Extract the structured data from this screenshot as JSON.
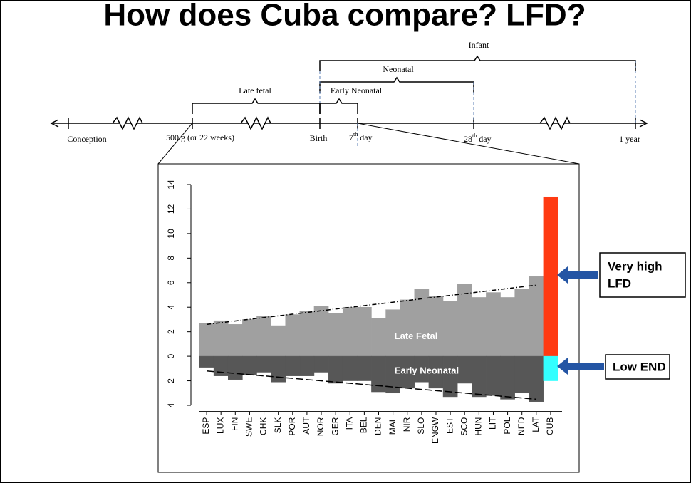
{
  "title": "How does Cuba compare? LFD?",
  "timeline": {
    "points": [
      "Conception",
      "500 g (or 22 weeks)",
      "Birth"
    ],
    "day7": {
      "num": "7",
      "sup": "th",
      "rest": " day"
    },
    "day28": {
      "num": "28",
      "sup": "th",
      "rest": " day"
    },
    "year": "1 year",
    "periods": {
      "late_fetal": "Late fetal",
      "early_neonatal": "Early Neonatal",
      "neonatal": "Neonatal",
      "infant": "Infant"
    }
  },
  "callouts": {
    "high": [
      "Very high",
      "LFD"
    ],
    "low": "Low END"
  },
  "chart_data": {
    "type": "bar",
    "categories": [
      "ESP",
      "LUX",
      "FIN",
      "SWE",
      "CHK",
      "SLK",
      "POR",
      "AUT",
      "NOR",
      "GER",
      "ITA",
      "BEL",
      "DEN",
      "MAL",
      "NIR",
      "SLO",
      "ENGW",
      "EST",
      "SCO",
      "HUN",
      "LIT",
      "POL",
      "NED",
      "LAT",
      "CUB"
    ],
    "series": [
      {
        "name": "Late Fetal",
        "color": "#a0a0a0",
        "colors": [
          "#a0a0a0",
          "#a0a0a0",
          "#a0a0a0",
          "#a0a0a0",
          "#a0a0a0",
          "#a0a0a0",
          "#a0a0a0",
          "#a0a0a0",
          "#a0a0a0",
          "#a0a0a0",
          "#a0a0a0",
          "#a0a0a0",
          "#a0a0a0",
          "#a0a0a0",
          "#a0a0a0",
          "#a0a0a0",
          "#a0a0a0",
          "#a0a0a0",
          "#a0a0a0",
          "#a0a0a0",
          "#a0a0a0",
          "#a0a0a0",
          "#a0a0a0",
          "#a0a0a0",
          "#ff3a12"
        ],
        "values": [
          2.7,
          2.9,
          2.6,
          3.0,
          3.3,
          2.5,
          3.4,
          3.7,
          4.1,
          3.5,
          4.0,
          4.0,
          3.1,
          3.8,
          4.6,
          5.5,
          4.9,
          4.5,
          5.9,
          4.8,
          5.2,
          4.8,
          5.5,
          6.5,
          13.0
        ]
      },
      {
        "name": "Early Neonatal",
        "color": "#575757",
        "colors": [
          "#575757",
          "#575757",
          "#575757",
          "#575757",
          "#575757",
          "#575757",
          "#575757",
          "#575757",
          "#575757",
          "#575757",
          "#575757",
          "#575757",
          "#575757",
          "#575757",
          "#575757",
          "#575757",
          "#575757",
          "#575757",
          "#575757",
          "#575757",
          "#575757",
          "#575757",
          "#575757",
          "#575757",
          "#33ffff"
        ],
        "values": [
          -0.9,
          -1.6,
          -1.9,
          -1.5,
          -1.3,
          -2.1,
          -1.6,
          -1.6,
          -1.3,
          -2.2,
          -2.0,
          -2.0,
          -2.9,
          -3.0,
          -2.6,
          -2.1,
          -2.6,
          -3.3,
          -2.2,
          -3.3,
          -3.2,
          -3.5,
          -3.0,
          -3.7,
          -2.0
        ]
      }
    ],
    "trend_lines": [
      {
        "values": [
          2.6,
          5.8
        ]
      },
      {
        "values": [
          -1.2,
          -3.5
        ]
      }
    ],
    "ylim": [
      -4.5,
      14.5
    ],
    "yticks": [
      {
        "value": -4,
        "label": "4"
      },
      {
        "value": -2,
        "label": "2"
      },
      0,
      2,
      4,
      6,
      8,
      10,
      12,
      14
    ]
  }
}
